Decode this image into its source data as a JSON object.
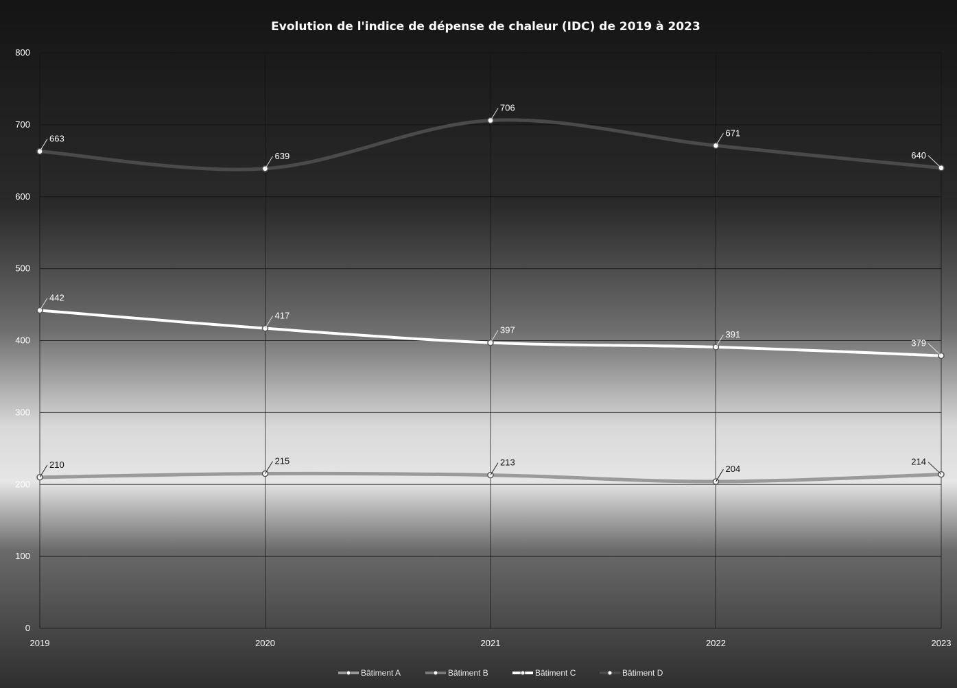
{
  "colors": {
    "series": [
      "#9a9a9a",
      "#7a7a7a",
      "#ffffff",
      "#4a4a4a"
    ],
    "gridline": "#111111",
    "text": "#ffffff"
  },
  "chart_data": {
    "type": "line",
    "title": "Evolution de l'indice de dépense de chaleur (IDC) de 2019 à 2023",
    "xlabel": "",
    "ylabel": "",
    "x": [
      "2019",
      "2020",
      "2021",
      "2022",
      "2023"
    ],
    "yticks": [
      "0",
      "100",
      "200",
      "300",
      "400",
      "500",
      "600",
      "700",
      "800"
    ],
    "ylim": [
      0,
      800
    ],
    "grid": true,
    "smooth": true,
    "legend_position": "bottom",
    "series": [
      {
        "name": "Bâtiment A",
        "values": [
          210,
          215,
          213,
          204,
          214
        ],
        "labels": [
          "210",
          "215",
          "213",
          "204",
          "214"
        ]
      },
      {
        "name": "Bâtiment B",
        "values": [
          null,
          null,
          null,
          null,
          null
        ],
        "labels": []
      },
      {
        "name": "Bâtiment C",
        "values": [
          442,
          417,
          397,
          391,
          379
        ],
        "labels": [
          "442",
          "417",
          "397",
          "391",
          "379"
        ]
      },
      {
        "name": "Bâtiment D",
        "values": [
          663,
          639,
          706,
          671,
          640
        ],
        "labels": [
          "663",
          "639",
          "706",
          "671",
          "640"
        ]
      }
    ]
  }
}
